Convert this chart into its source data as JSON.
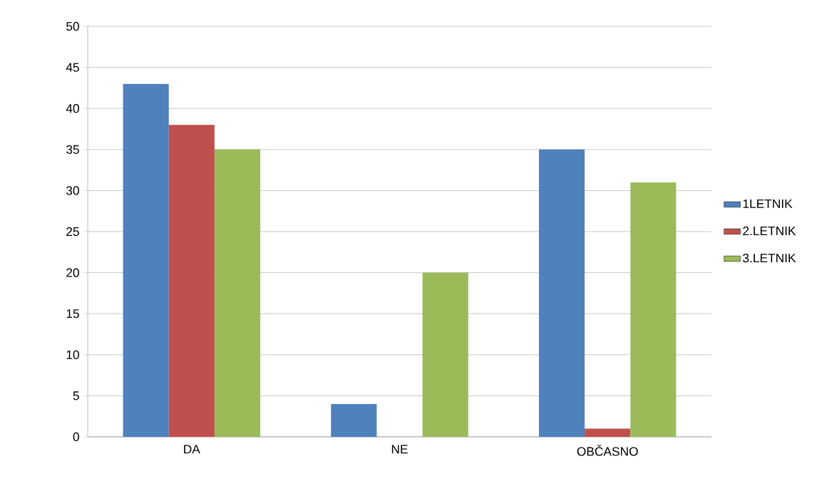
{
  "chart_data": {
    "type": "bar",
    "categories": [
      "DA",
      "NE",
      "OBČASNO"
    ],
    "series": [
      {
        "name": "1LETNIK",
        "color": "#4f81bd",
        "values": [
          43,
          4,
          35
        ]
      },
      {
        "name": "2.LETNIK",
        "color": "#c0504d",
        "values": [
          38,
          0,
          1
        ]
      },
      {
        "name": "3.LETNIK",
        "color": "#9bbb59",
        "values": [
          35,
          20,
          31
        ]
      }
    ],
    "ylim": [
      0,
      50
    ],
    "yticks": [
      0,
      5,
      10,
      15,
      20,
      25,
      30,
      35,
      40,
      45,
      50
    ],
    "grid": "y",
    "legend": "right"
  }
}
